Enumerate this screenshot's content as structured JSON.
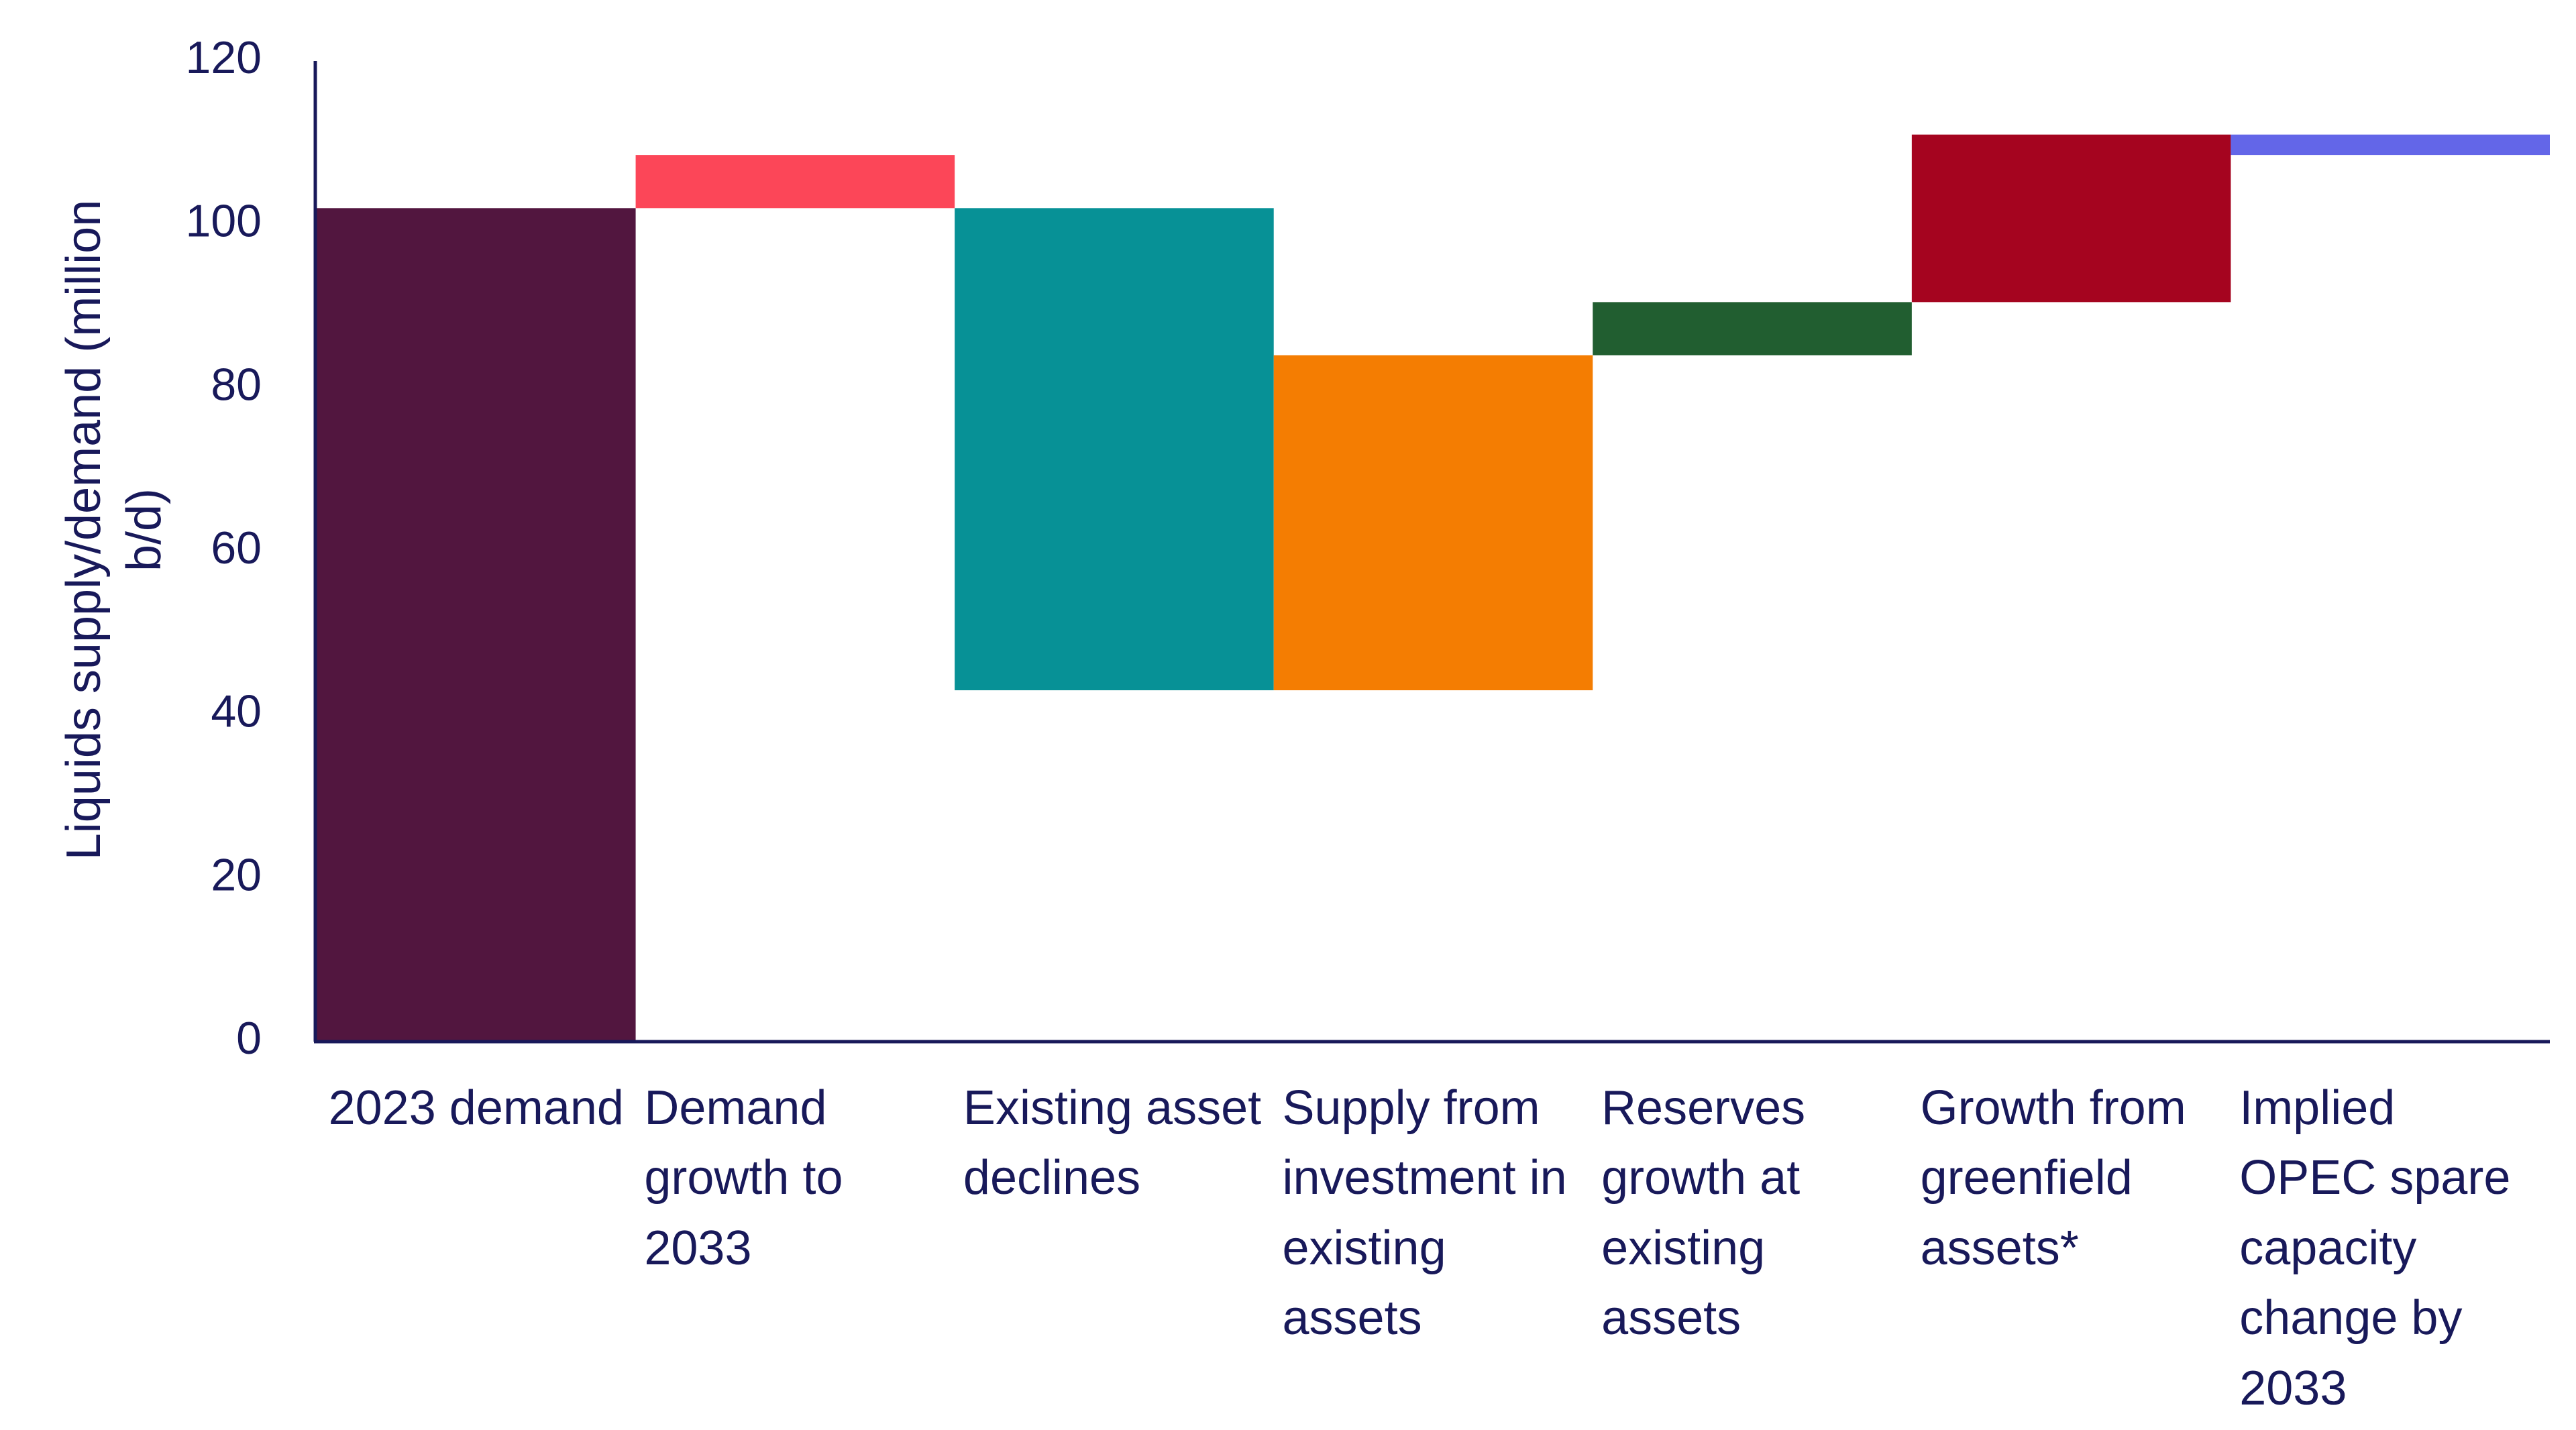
{
  "chart_data": {
    "type": "waterfall",
    "ylabel": "Liquids supply/demand (million b/d)",
    "categories": [
      "2023 demand",
      "Demand growth to 2033",
      "Existing asset declines",
      "Supply from investment in existing assets",
      "Reserves growth at existing assets",
      "Growth from greenfield assets*",
      "Implied OPEC spare capacity change by 2033"
    ],
    "values": [
      102,
      6.5,
      -59,
      41,
      6.5,
      20.5,
      -2.5
    ],
    "measure": [
      "total",
      "branch",
      "relative",
      "relative",
      "relative",
      "relative",
      "relative"
    ],
    "colors": [
      "#52163f",
      "#fc4658",
      "#079196",
      "#f47d02",
      "#215e30",
      "#a5041f",
      "#6366e8"
    ],
    "ylim": [
      0,
      120
    ],
    "yticks": [
      0,
      20,
      40,
      60,
      80,
      100,
      120
    ]
  }
}
